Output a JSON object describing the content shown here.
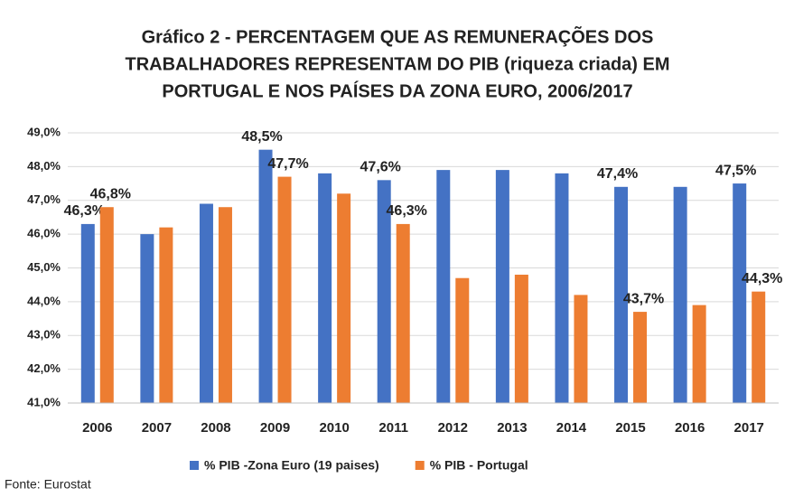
{
  "chart_data": {
    "type": "bar",
    "title": [
      "Gráfico 2 - PERCENTAGEM QUE AS REMUNERAÇÕES DOS",
      "TRABALHADORES REPRESENTAM DO PIB (riqueza criada) EM",
      "PORTUGAL E NOS PAÍSES DA ZONA EURO,   2006/2017"
    ],
    "categories": [
      "2006",
      "2007",
      "2008",
      "2009",
      "2010",
      "2011",
      "2012",
      "2013",
      "2014",
      "2015",
      "2016",
      "2017"
    ],
    "series": [
      {
        "name": "% PIB -Zona Euro (19 paises)",
        "color": "#4472c4",
        "values": [
          46.3,
          46.0,
          46.9,
          48.5,
          47.8,
          47.6,
          47.9,
          47.9,
          47.8,
          47.4,
          47.4,
          47.5
        ],
        "value_labels": [
          "46,3%",
          null,
          null,
          "48,5%",
          null,
          "47,6%",
          null,
          null,
          null,
          "47,4%",
          null,
          "47,5%"
        ]
      },
      {
        "name": "% PIB - Portugal",
        "color": "#ed7d31",
        "values": [
          46.8,
          46.2,
          46.8,
          47.7,
          47.2,
          46.3,
          44.7,
          44.8,
          44.2,
          43.7,
          43.9,
          44.3
        ],
        "value_labels": [
          "46,8%",
          null,
          null,
          "47,7%",
          null,
          "46,3%",
          null,
          null,
          null,
          "43,7%",
          null,
          "44,3%"
        ]
      }
    ],
    "ylim": [
      41,
      49
    ],
    "yticks": [
      {
        "value": 41,
        "label": "41,0%"
      },
      {
        "value": 42,
        "label": "42,0%"
      },
      {
        "value": 43,
        "label": "43,0%"
      },
      {
        "value": 44,
        "label": "44,0%"
      },
      {
        "value": 45,
        "label": "45,0%"
      },
      {
        "value": 46,
        "label": "46,0%"
      },
      {
        "value": 47,
        "label": "47,0%"
      },
      {
        "value": 48,
        "label": "48,0%"
      },
      {
        "value": 49,
        "label": "49,0%"
      }
    ],
    "grid": true,
    "source": "Fonte: Eurostat"
  }
}
